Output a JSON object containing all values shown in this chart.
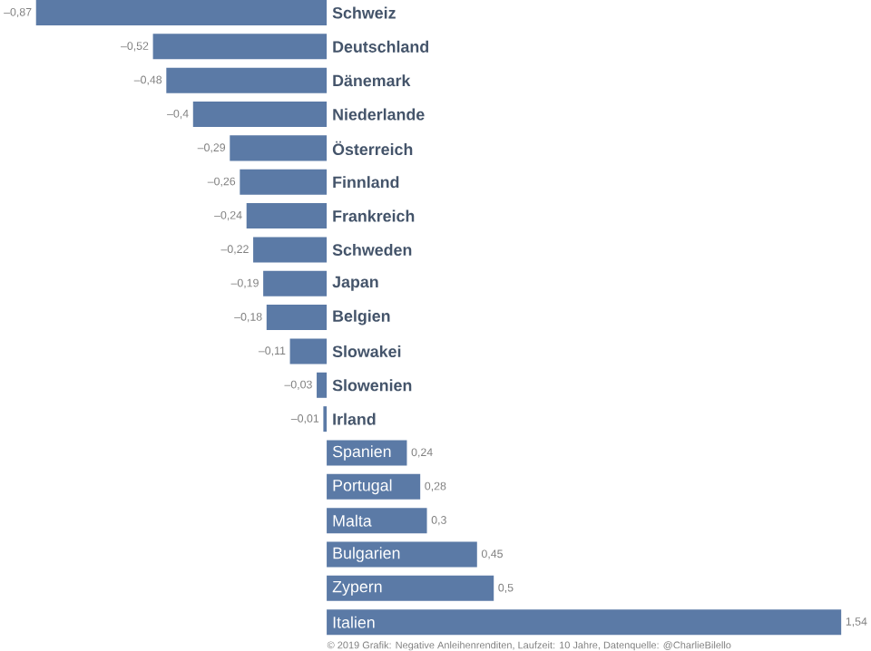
{
  "chart_data": {
    "type": "bar",
    "orientation": "horizontal",
    "color": "#5b7aa6",
    "categories": [
      "Schweiz",
      "Deutschland",
      "Dänemark",
      "Niederlande",
      "Österreich",
      "Finnland",
      "Frankreich",
      "Schweden",
      "Japan",
      "Belgien",
      "Slowakei",
      "Slowenien",
      "Irland",
      "Spanien",
      "Portugal",
      "Malta",
      "Bulgarien",
      "Zypern",
      "Italien"
    ],
    "values": [
      -0.87,
      -0.52,
      -0.48,
      -0.4,
      -0.29,
      -0.26,
      -0.24,
      -0.22,
      -0.19,
      -0.18,
      -0.11,
      -0.03,
      -0.01,
      0.24,
      0.28,
      0.3,
      0.45,
      0.5,
      1.54
    ],
    "value_labels": [
      "–0,87",
      "–0,52",
      "–0,48",
      "–0,4",
      "–0,29",
      "–0,26",
      "–0,24",
      "–0,22",
      "–0,19",
      "–0,18",
      "–0,11",
      "–0,03",
      "–0,01",
      "0,24",
      "0,28",
      "0,3",
      "0,45",
      "0,5",
      "1,54"
    ],
    "annotations": [
      "© 2019 Grafik: Negative Anleihenrenditen, Laufzeit: 10 Jahre, Datenquelle: @CharlieBilello"
    ]
  }
}
